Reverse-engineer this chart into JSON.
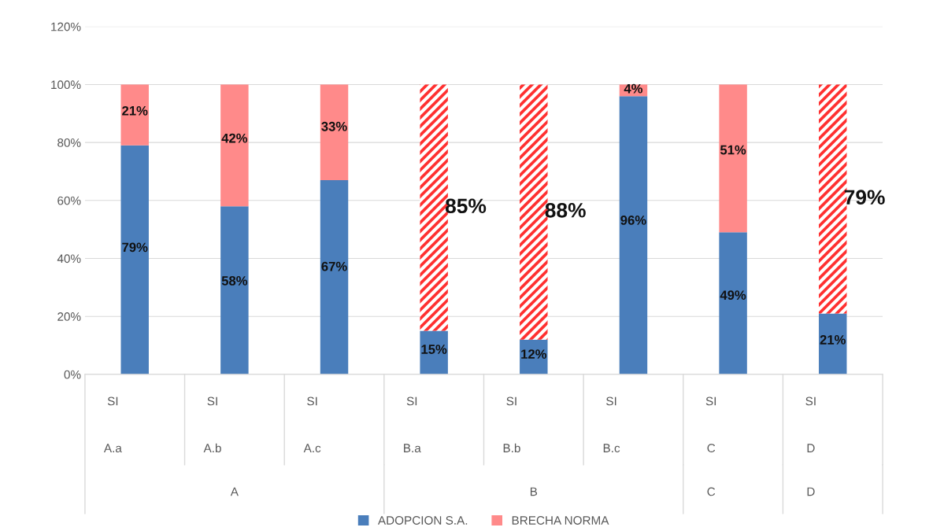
{
  "chart_data": {
    "type": "bar",
    "stacked": true,
    "categories": [
      "A.a",
      "A.b",
      "A.c",
      "B.a",
      "B.b",
      "B.c",
      "C",
      "D"
    ],
    "series": [
      {
        "name": "ADOPCION S.A.",
        "color": "#4a7ebb",
        "values": [
          79,
          58,
          67,
          15,
          12,
          96,
          49,
          21
        ],
        "value_labels": [
          "79%",
          "58%",
          "67%",
          "15%",
          "12%",
          "96%",
          "49%",
          "21%"
        ]
      },
      {
        "name": "BRECHA NORMA",
        "color": "#ff8a8a",
        "colors": [
          "#ff8a8a",
          "#ff8a8a",
          "#ff8a8a",
          "#ff3030",
          "#ff3030",
          "#ff8a8a",
          "#ff8a8a",
          "#ff3030"
        ],
        "values": [
          21,
          42,
          33,
          85,
          88,
          4,
          51,
          79
        ],
        "value_labels": [
          "21%",
          "42%",
          "33%",
          "85%",
          "88%",
          "4%",
          "51%",
          "79%"
        ]
      }
    ],
    "annotations": [
      "SI",
      "SI",
      "SI",
      "SI",
      "SI",
      "SI",
      "SI",
      "SI",
      "A",
      "B",
      "C",
      "D"
    ],
    "ylim": [
      0,
      120
    ],
    "yticks": [
      {
        "value": 0,
        "label": "0%"
      },
      {
        "value": 20,
        "label": "20%"
      },
      {
        "value": 40,
        "label": "40%"
      },
      {
        "value": 60,
        "label": "60%"
      },
      {
        "value": 80,
        "label": "80%"
      },
      {
        "value": 100,
        "label": "100%"
      },
      {
        "value": 120,
        "label": "120%"
      }
    ],
    "grid": "y",
    "legend": "bottom"
  }
}
